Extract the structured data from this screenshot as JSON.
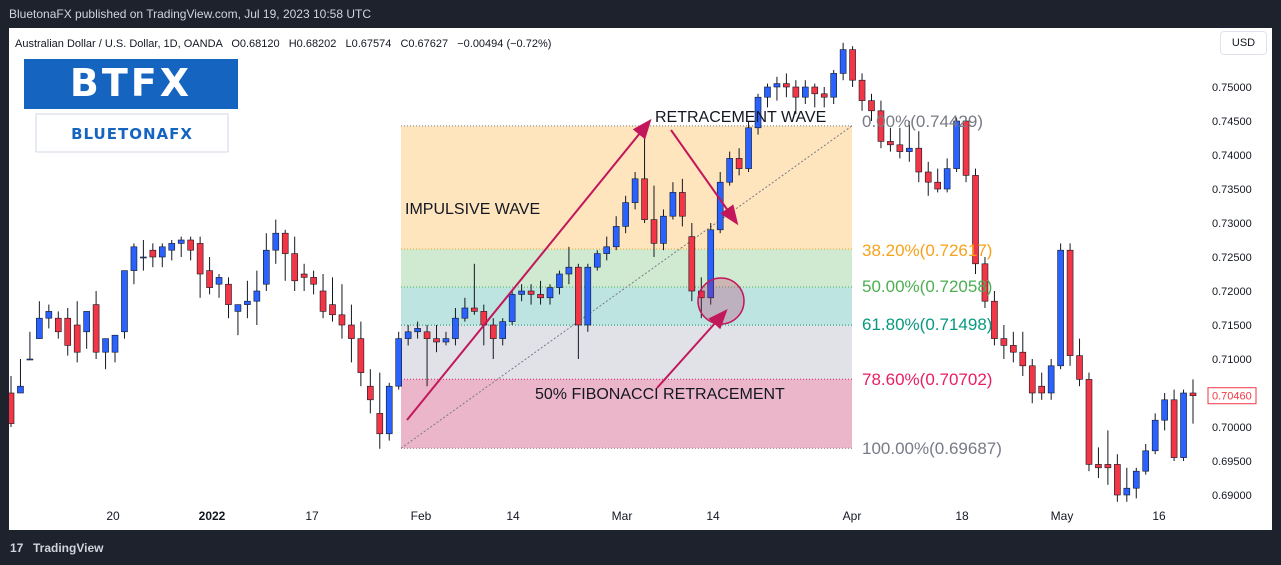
{
  "header": {
    "publisher_line": "BluetonaFX published on TradingView.com, Jul 19, 2023 10:58 UTC"
  },
  "toolbar": {
    "currency_label": "USD"
  },
  "footer": {
    "brand": "TradingView",
    "logo_glyph": "17"
  },
  "logo": {
    "main_text": "BTFX",
    "sub_text": "BLUETONAFX",
    "main_color": "#1565c0",
    "sub_color": "#1565c0"
  },
  "colors": {
    "up_candle": "#2962ff",
    "down_candle": "#f23645",
    "arrow": "#c2185b",
    "axis_text": "#131722",
    "price_tag": "#f23645"
  },
  "chart_data": {
    "type": "candlestick",
    "symbol_line": "Australian Dollar / U.S. Dollar, 1D, OANDA",
    "ohlc_line": {
      "open": "O0.68120",
      "high": "H0.68202",
      "low": "L0.67574",
      "close": "C0.67627",
      "change": "−0.00494 (−0.72%)"
    },
    "ylim": [
      0.6878,
      0.7565
    ],
    "y_ticks": [
      "0.75000",
      "0.74500",
      "0.74000",
      "0.73500",
      "0.73000",
      "0.72500",
      "0.72000",
      "0.71500",
      "0.71000",
      "0.70500",
      "0.70000",
      "0.69500",
      "0.69000"
    ],
    "x_ticks": [
      "20",
      "2022",
      "17",
      "Feb",
      "14",
      "Mar",
      "14",
      "Apr",
      "18",
      "May",
      "16"
    ],
    "last_price": "0.70460",
    "fib_levels": [
      {
        "label": "0.00%(0.74429)",
        "ratio": 0.0,
        "price": 0.74429,
        "color": "#787b86"
      },
      {
        "label": "38.20%(0.72617)",
        "ratio": 0.382,
        "price": 0.72617,
        "color": "#f7a21b"
      },
      {
        "label": "50.00%(0.72058)",
        "ratio": 0.5,
        "price": 0.72058,
        "color": "#4caf50"
      },
      {
        "label": "61.80%(0.71498)",
        "ratio": 0.618,
        "price": 0.71498,
        "color": "#089981"
      },
      {
        "label": "78.60%(0.70702)",
        "ratio": 0.786,
        "price": 0.70702,
        "color": "#e91e63"
      },
      {
        "label": "100.00%(0.69687)",
        "ratio": 1.0,
        "price": 0.69687,
        "color": "#787b86"
      }
    ],
    "fib_zone_colors": [
      "#ffe0b2",
      "#c8e6c9",
      "#b2dfdb",
      "#dcdde3",
      "#e8a9c0"
    ],
    "annotations": {
      "impulsive": "IMPULSIVE WAVE",
      "retracement": "RETRACEMENT WAVE",
      "fib50": "50% FIBONACCI RETRACEMENT"
    },
    "candles": [
      [
        0.705,
        0.7075,
        0.7005,
        0.7
      ],
      [
        0.705,
        0.71,
        0.706,
        0.7125
      ],
      [
        0.71,
        0.714,
        0.71,
        0.715
      ],
      [
        0.713,
        0.7185,
        0.716,
        0.717
      ],
      [
        0.716,
        0.718,
        0.717,
        0.7145
      ],
      [
        0.716,
        0.717,
        0.714,
        0.713
      ],
      [
        0.716,
        0.7175,
        0.712,
        0.7105
      ],
      [
        0.715,
        0.7185,
        0.711,
        0.7095
      ],
      [
        0.714,
        0.716,
        0.717,
        0.7115
      ],
      [
        0.718,
        0.72,
        0.711,
        0.71
      ],
      [
        0.711,
        0.713,
        0.713,
        0.7085
      ],
      [
        0.711,
        0.7135,
        0.7135,
        0.7095
      ],
      [
        0.714,
        0.723,
        0.723,
        0.713
      ],
      [
        0.723,
        0.727,
        0.7265,
        0.721
      ],
      [
        0.725,
        0.7275,
        0.725,
        0.723
      ],
      [
        0.726,
        0.727,
        0.725,
        0.7235
      ],
      [
        0.725,
        0.727,
        0.7265,
        0.7235
      ],
      [
        0.726,
        0.7275,
        0.727,
        0.7245
      ],
      [
        0.727,
        0.728,
        0.7275,
        0.725
      ],
      [
        0.7275,
        0.728,
        0.726,
        0.7245
      ],
      [
        0.727,
        0.728,
        0.7225,
        0.719
      ],
      [
        0.723,
        0.725,
        0.7205,
        0.7195
      ],
      [
        0.721,
        0.7225,
        0.722,
        0.719
      ],
      [
        0.721,
        0.722,
        0.718,
        0.716
      ],
      [
        0.717,
        0.718,
        0.718,
        0.7135
      ],
      [
        0.718,
        0.7215,
        0.7185,
        0.716
      ],
      [
        0.7185,
        0.723,
        0.72,
        0.715
      ],
      [
        0.721,
        0.7285,
        0.726,
        0.72
      ],
      [
        0.726,
        0.7305,
        0.7285,
        0.724
      ],
      [
        0.7285,
        0.729,
        0.7255,
        0.7215
      ],
      [
        0.7255,
        0.728,
        0.7215,
        0.72
      ],
      [
        0.7225,
        0.724,
        0.722,
        0.72
      ],
      [
        0.722,
        0.723,
        0.721,
        0.7195
      ],
      [
        0.72,
        0.7225,
        0.717,
        0.716
      ],
      [
        0.718,
        0.722,
        0.7165,
        0.7155
      ],
      [
        0.7165,
        0.721,
        0.715,
        0.713
      ],
      [
        0.715,
        0.718,
        0.713,
        0.7095
      ],
      [
        0.713,
        0.7155,
        0.708,
        0.706
      ],
      [
        0.706,
        0.7085,
        0.704,
        0.702
      ],
      [
        0.702,
        0.708,
        0.699,
        0.6968
      ],
      [
        0.699,
        0.7065,
        0.706,
        0.698
      ],
      [
        0.706,
        0.714,
        0.713,
        0.7055
      ],
      [
        0.713,
        0.715,
        0.714,
        0.712
      ],
      [
        0.714,
        0.7155,
        0.7145,
        0.713
      ],
      [
        0.714,
        0.715,
        0.713,
        0.706
      ],
      [
        0.713,
        0.715,
        0.7125,
        0.711
      ],
      [
        0.7125,
        0.714,
        0.713,
        0.712
      ],
      [
        0.713,
        0.7175,
        0.716,
        0.712
      ],
      [
        0.716,
        0.719,
        0.7175,
        0.7155
      ],
      [
        0.7175,
        0.724,
        0.717,
        0.7165
      ],
      [
        0.717,
        0.718,
        0.715,
        0.712
      ],
      [
        0.715,
        0.716,
        0.713,
        0.71
      ],
      [
        0.713,
        0.716,
        0.7155,
        0.712
      ],
      [
        0.7155,
        0.72,
        0.7195,
        0.715
      ],
      [
        0.7195,
        0.721,
        0.72,
        0.7185
      ],
      [
        0.72,
        0.721,
        0.7195,
        0.718
      ],
      [
        0.7195,
        0.7215,
        0.719,
        0.718
      ],
      [
        0.719,
        0.721,
        0.7205,
        0.718
      ],
      [
        0.7205,
        0.723,
        0.7225,
        0.7195
      ],
      [
        0.7225,
        0.7265,
        0.7235,
        0.721
      ],
      [
        0.7235,
        0.724,
        0.715,
        0.71
      ],
      [
        0.715,
        0.724,
        0.7235,
        0.714
      ],
      [
        0.7235,
        0.726,
        0.7255,
        0.723
      ],
      [
        0.7255,
        0.728,
        0.7265,
        0.7245
      ],
      [
        0.7265,
        0.731,
        0.7295,
        0.726
      ],
      [
        0.7295,
        0.734,
        0.733,
        0.7285
      ],
      [
        0.733,
        0.7375,
        0.7365,
        0.732
      ],
      [
        0.7365,
        0.7445,
        0.7305,
        0.73
      ],
      [
        0.7305,
        0.7355,
        0.727,
        0.725
      ],
      [
        0.727,
        0.732,
        0.731,
        0.726
      ],
      [
        0.731,
        0.736,
        0.7345,
        0.7305
      ],
      [
        0.7345,
        0.7365,
        0.731,
        0.7295
      ],
      [
        0.728,
        0.73,
        0.72,
        0.7185
      ],
      [
        0.72,
        0.722,
        0.719,
        0.716
      ],
      [
        0.719,
        0.73,
        0.729,
        0.718
      ],
      [
        0.729,
        0.7375,
        0.736,
        0.7285
      ],
      [
        0.736,
        0.7405,
        0.7395,
        0.7355
      ],
      [
        0.7395,
        0.741,
        0.738,
        0.737
      ],
      [
        0.738,
        0.745,
        0.744,
        0.7375
      ],
      [
        0.744,
        0.749,
        0.7485,
        0.743
      ],
      [
        0.7485,
        0.7505,
        0.75,
        0.747
      ],
      [
        0.75,
        0.7515,
        0.7505,
        0.748
      ],
      [
        0.7505,
        0.752,
        0.75,
        0.7485
      ],
      [
        0.75,
        0.751,
        0.7485,
        0.746
      ],
      [
        0.7485,
        0.751,
        0.75,
        0.7475
      ],
      [
        0.75,
        0.7505,
        0.749,
        0.747
      ],
      [
        0.749,
        0.75,
        0.7485,
        0.747
      ],
      [
        0.7485,
        0.7525,
        0.752,
        0.7475
      ],
      [
        0.752,
        0.7565,
        0.7555,
        0.751
      ],
      [
        0.7555,
        0.756,
        0.751,
        0.75
      ],
      [
        0.751,
        0.752,
        0.748,
        0.7465
      ],
      [
        0.748,
        0.749,
        0.7465,
        0.745
      ],
      [
        0.7465,
        0.748,
        0.742,
        0.741
      ],
      [
        0.742,
        0.744,
        0.7415,
        0.7405
      ],
      [
        0.7415,
        0.744,
        0.7405,
        0.7395
      ],
      [
        0.7405,
        0.745,
        0.741,
        0.739
      ],
      [
        0.741,
        0.7435,
        0.7375,
        0.736
      ],
      [
        0.7375,
        0.739,
        0.736,
        0.734
      ],
      [
        0.736,
        0.738,
        0.735,
        0.7345
      ],
      [
        0.735,
        0.7395,
        0.738,
        0.7345
      ],
      [
        0.738,
        0.7455,
        0.745,
        0.7375
      ],
      [
        0.745,
        0.7455,
        0.737,
        0.736
      ],
      [
        0.737,
        0.738,
        0.724,
        0.7225
      ],
      [
        0.724,
        0.725,
        0.7185,
        0.7175
      ],
      [
        0.7185,
        0.72,
        0.713,
        0.712
      ],
      [
        0.713,
        0.715,
        0.712,
        0.71
      ],
      [
        0.712,
        0.714,
        0.711,
        0.7095
      ],
      [
        0.711,
        0.714,
        0.709,
        0.7075
      ],
      [
        0.709,
        0.71,
        0.705,
        0.7035
      ],
      [
        0.706,
        0.708,
        0.705,
        0.704
      ],
      [
        0.705,
        0.71,
        0.709,
        0.704
      ],
      [
        0.709,
        0.727,
        0.726,
        0.7085
      ],
      [
        0.726,
        0.727,
        0.7105,
        0.709
      ],
      [
        0.7105,
        0.713,
        0.707,
        0.706
      ],
      [
        0.707,
        0.708,
        0.6945,
        0.6935
      ],
      [
        0.6945,
        0.697,
        0.694,
        0.6925
      ],
      [
        0.6945,
        0.6995,
        0.694,
        0.6915
      ],
      [
        0.6945,
        0.696,
        0.69,
        0.689
      ],
      [
        0.69,
        0.694,
        0.691,
        0.689
      ],
      [
        0.691,
        0.694,
        0.6935,
        0.6895
      ],
      [
        0.6935,
        0.6975,
        0.6965,
        0.693
      ],
      [
        0.6965,
        0.702,
        0.701,
        0.696
      ],
      [
        0.701,
        0.705,
        0.704,
        0.6995
      ],
      [
        0.704,
        0.7055,
        0.6955,
        0.695
      ],
      [
        0.6955,
        0.7055,
        0.705,
        0.695
      ],
      [
        0.705,
        0.707,
        0.7046,
        0.7005
      ]
    ]
  }
}
